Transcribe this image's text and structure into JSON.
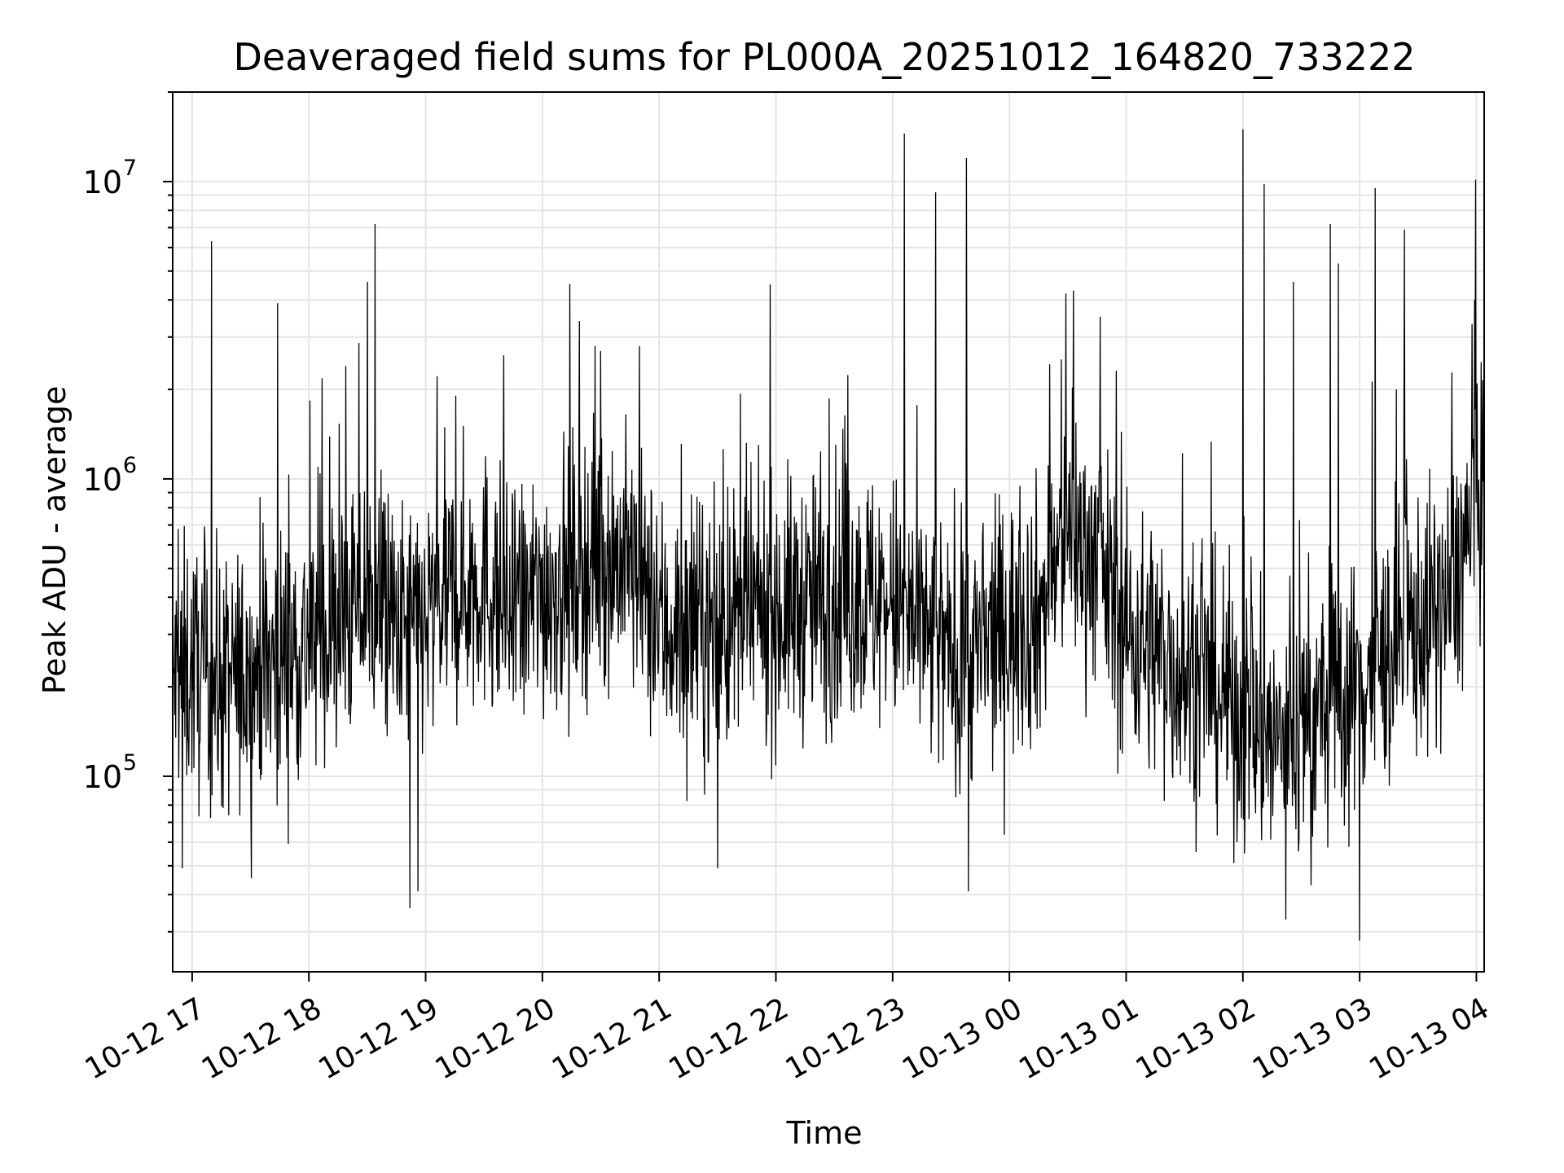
{
  "chart_data": {
    "type": "line",
    "title": "Deaveraged field sums for PL000A_20251012_164820_733222",
    "xlabel": "Time",
    "ylabel": "Peak ADU - average",
    "yscale": "log",
    "ylim": [
      22000,
      20000000
    ],
    "xlim": [
      "2025-10-12 16:50",
      "2025-10-13 04:04"
    ],
    "grid": true,
    "line_color": "#000000",
    "grid_color": "#e5e5e5",
    "x_ticks": [
      "10-12 17",
      "10-12 18",
      "10-12 19",
      "10-12 20",
      "10-12 21",
      "10-12 22",
      "10-12 23",
      "10-13 00",
      "10-13 01",
      "10-13 02",
      "10-13 03",
      "10-13 04"
    ],
    "y_ticks": [
      {
        "base": "10",
        "exp": "5",
        "value": 100000
      },
      {
        "base": "10",
        "exp": "6",
        "value": 1000000
      },
      {
        "base": "10",
        "exp": "7",
        "value": 10000000
      }
    ],
    "series": [
      {
        "values_profile": [
          [
            "2025-10-12 16:50",
            210000
          ],
          [
            "2025-10-12 17:00",
            230000
          ],
          [
            "2025-10-12 17:15",
            200000
          ],
          [
            "2025-10-12 17:30",
            220000
          ],
          [
            "2025-10-12 17:45",
            250000
          ],
          [
            "2025-10-12 18:00",
            280000
          ],
          [
            "2025-10-12 18:15",
            320000
          ],
          [
            "2025-10-12 18:30",
            400000
          ],
          [
            "2025-10-12 18:45",
            300000
          ],
          [
            "2025-10-12 19:00",
            330000
          ],
          [
            "2025-10-12 19:15",
            420000
          ],
          [
            "2025-10-12 19:30",
            460000
          ],
          [
            "2025-10-12 19:45",
            330000
          ],
          [
            "2025-10-12 20:00",
            420000
          ],
          [
            "2025-10-12 20:15",
            480000
          ],
          [
            "2025-10-12 20:30",
            560000
          ],
          [
            "2025-10-12 20:45",
            520000
          ],
          [
            "2025-10-12 21:00",
            320000
          ],
          [
            "2025-10-12 21:15",
            300000
          ],
          [
            "2025-10-12 21:30",
            310000
          ],
          [
            "2025-10-12 21:45",
            340000
          ],
          [
            "2025-10-12 22:00",
            360000
          ],
          [
            "2025-10-12 22:15",
            380000
          ],
          [
            "2025-10-12 22:30",
            390000
          ],
          [
            "2025-10-12 22:45",
            400000
          ],
          [
            "2025-10-12 23:00",
            380000
          ],
          [
            "2025-10-12 23:15",
            300000
          ],
          [
            "2025-10-12 23:30",
            250000
          ],
          [
            "2025-10-12 23:45",
            260000
          ],
          [
            "2025-10-13 00:00",
            320000
          ],
          [
            "2025-10-13 00:15",
            350000
          ],
          [
            "2025-10-13 00:30",
            650000
          ],
          [
            "2025-10-13 00:45",
            550000
          ],
          [
            "2025-10-13 01:00",
            300000
          ],
          [
            "2025-10-13 01:15",
            270000
          ],
          [
            "2025-10-13 01:30",
            220000
          ],
          [
            "2025-10-13 01:45",
            200000
          ],
          [
            "2025-10-13 02:00",
            160000
          ],
          [
            "2025-10-13 02:15",
            130000
          ],
          [
            "2025-10-13 02:30",
            140000
          ],
          [
            "2025-10-13 02:45",
            170000
          ],
          [
            "2025-10-13 03:00",
            200000
          ],
          [
            "2025-10-13 03:15",
            260000
          ],
          [
            "2025-10-13 03:30",
            320000
          ],
          [
            "2025-10-13 03:45",
            380000
          ],
          [
            "2025-10-13 04:04",
            950000
          ]
        ],
        "spikes": [
          [
            "2025-10-12 17:10",
            6300000
          ],
          [
            "2025-10-12 17:44",
            3900000
          ],
          [
            "2025-10-12 18:34",
            7200000
          ],
          [
            "2025-10-12 18:30",
            4600000
          ],
          [
            "2025-10-12 23:06",
            14500000
          ],
          [
            "2025-10-12 23:22",
            9200000
          ],
          [
            "2025-10-12 23:38",
            12000000
          ],
          [
            "2025-10-13 00:29",
            4200000
          ],
          [
            "2025-10-13 00:33",
            4300000
          ],
          [
            "2025-10-13 02:00",
            15000000
          ],
          [
            "2025-10-13 02:11",
            9800000
          ],
          [
            "2025-10-13 02:26",
            4600000
          ],
          [
            "2025-10-13 02:45",
            7200000
          ],
          [
            "2025-10-13 02:49",
            5300000
          ],
          [
            "2025-10-13 03:08",
            9500000
          ],
          [
            "2025-10-13 03:23",
            6900000
          ],
          [
            "2025-10-13 03:59",
            4000000
          ],
          [
            "2025-10-12 20:27",
            2800000
          ]
        ],
        "dips": [
          [
            "2025-10-12 18:52",
            36000
          ],
          [
            "2025-10-12 18:56",
            41000
          ],
          [
            "2025-10-12 23:39",
            41000
          ],
          [
            "2025-10-13 02:22",
            33000
          ],
          [
            "2025-10-13 03:00",
            28000
          ],
          [
            "2025-10-12 21:30",
            49000
          ],
          [
            "2025-10-12 16:55",
            49000
          ],
          [
            "2025-10-13 02:35",
            43000
          ],
          [
            "2025-10-13 01:57",
            60000
          ]
        ]
      }
    ]
  }
}
